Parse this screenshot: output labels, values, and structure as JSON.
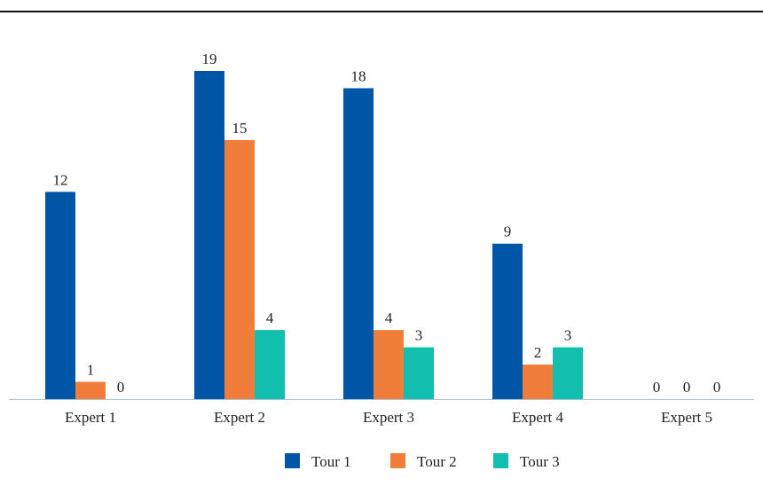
{
  "chart_data": {
    "type": "bar",
    "categories": [
      "Expert 1",
      "Expert 2",
      "Expert 3",
      "Expert 4",
      "Expert 5"
    ],
    "series": [
      {
        "name": "Tour 1",
        "color": "#0056a6",
        "values": [
          12,
          19,
          18,
          9,
          0
        ]
      },
      {
        "name": "Tour 2",
        "color": "#f07d3a",
        "values": [
          1,
          15,
          4,
          2,
          0
        ]
      },
      {
        "name": "Tour 3",
        "color": "#12bfae",
        "values": [
          0,
          4,
          3,
          3,
          0
        ]
      }
    ],
    "ylim": [
      0,
      19
    ],
    "grid": false,
    "data_labels": true,
    "legend_position": "bottom-center",
    "axis_color": "#a9c3d6"
  }
}
